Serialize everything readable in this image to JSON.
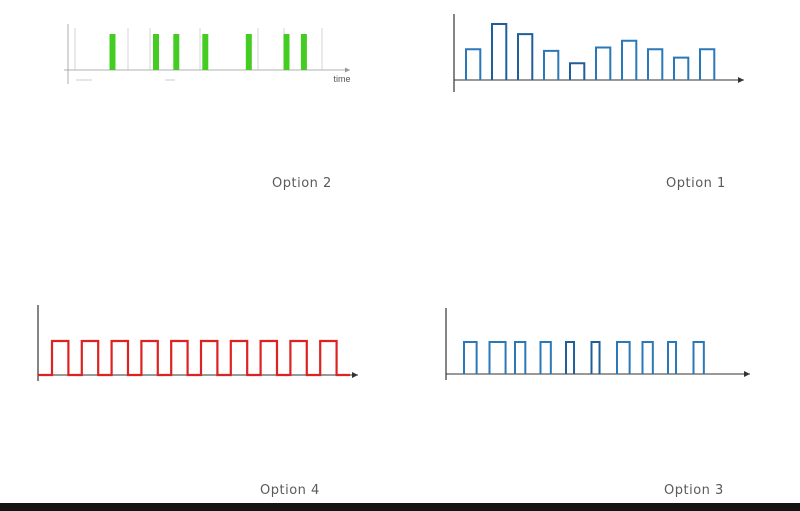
{
  "colors": {
    "green": "#44cc22",
    "blue": "#2a78b8",
    "blue_dark": "#1f5f99",
    "red": "#dd2222",
    "axis": "#333333",
    "grid": "#cccccc",
    "label": "#5a5a5a"
  },
  "options": {
    "opt2": {
      "label": "Option 2",
      "axis_label": "time",
      "pulse_x": [
        0.5,
        2.0,
        2.7,
        3.7,
        5.2,
        6.5,
        7.1
      ],
      "pulse_height": 1
    },
    "opt1": {
      "label": "Option 1",
      "bar_heights": [
        0.55,
        1.0,
        0.82,
        0.52,
        0.3,
        0.58,
        0.7,
        0.55,
        0.4,
        0.55
      ]
    },
    "opt4": {
      "label": "Option 4",
      "pulse_count": 10,
      "duty": 0.55
    },
    "opt3": {
      "label": "Option 3",
      "pulse_widths": [
        0.55,
        0.7,
        0.45,
        0.45,
        0.35,
        0.35,
        0.55,
        0.45,
        0.35,
        0.45
      ],
      "pulse_height": 1
    }
  }
}
